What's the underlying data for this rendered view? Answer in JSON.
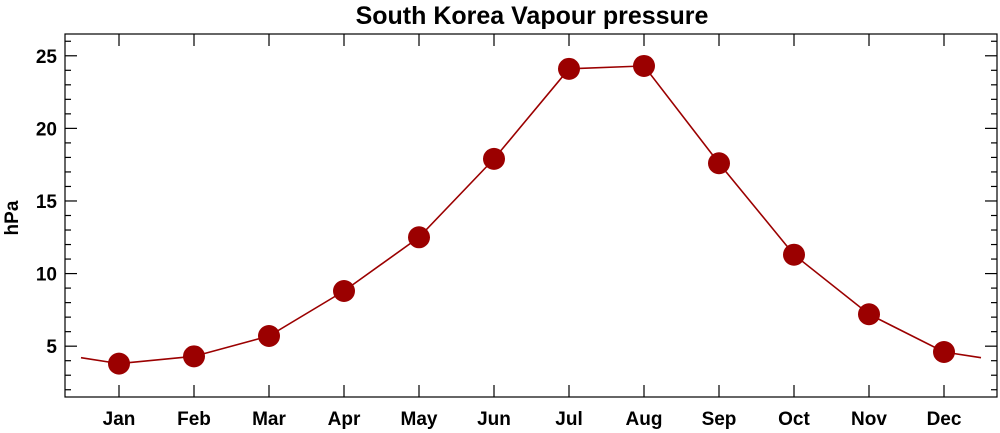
{
  "chart_data": {
    "type": "line",
    "title": "South Korea Vapour pressure",
    "xlabel": "",
    "ylabel": "hPa",
    "categories": [
      "Jan",
      "Feb",
      "Mar",
      "Apr",
      "May",
      "Jun",
      "Jul",
      "Aug",
      "Sep",
      "Oct",
      "Nov",
      "Dec"
    ],
    "series": [
      {
        "values": [
          3.8,
          4.3,
          5.7,
          8.8,
          12.5,
          17.9,
          24.1,
          24.3,
          17.6,
          11.3,
          7.2,
          4.6
        ],
        "color": "#9b0000"
      }
    ],
    "y_ticks": [
      5,
      10,
      15,
      20,
      25
    ],
    "ylim": [
      1.5,
      26.5
    ],
    "grid": false,
    "legend": "none",
    "markers": "filled-circle"
  }
}
